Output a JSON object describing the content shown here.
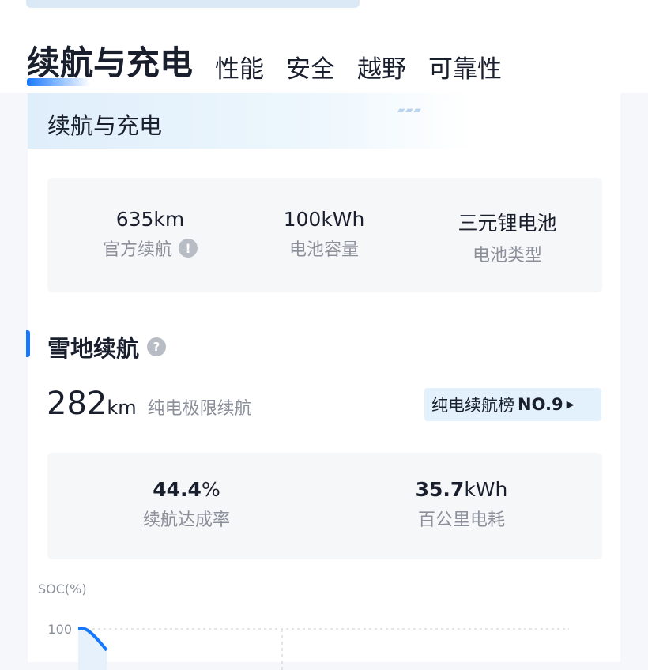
{
  "tabs": [
    {
      "label": "续航与充电",
      "active": true
    },
    {
      "label": "性能"
    },
    {
      "label": "安全"
    },
    {
      "label": "越野"
    },
    {
      "label": "可靠性"
    }
  ],
  "section_header": "续航与充电",
  "specs": [
    {
      "value": "635km",
      "label": "官方续航",
      "icon": "exclamation-icon"
    },
    {
      "value": "100kWh",
      "label": "电池容量"
    },
    {
      "value": "三元锂电池",
      "label": "电池类型"
    }
  ],
  "snow": {
    "title": "雪地续航",
    "help_icon": "question-icon",
    "range_value": "282",
    "range_unit": "km",
    "range_desc": "纯电极限续航",
    "rank_label": "纯电续航榜",
    "rank_value": "NO.9",
    "stats": [
      {
        "value": "44.4",
        "unit": "%",
        "label": "续航达成率"
      },
      {
        "value": "35.7",
        "unit": "kWh",
        "label": "百公里电耗"
      }
    ]
  },
  "chart_data": {
    "type": "area",
    "ylabel": "SOC(%)",
    "y_ticks": [
      "100"
    ],
    "series": [
      {
        "color": "#1677ff",
        "values": [
          100
        ]
      }
    ]
  }
}
